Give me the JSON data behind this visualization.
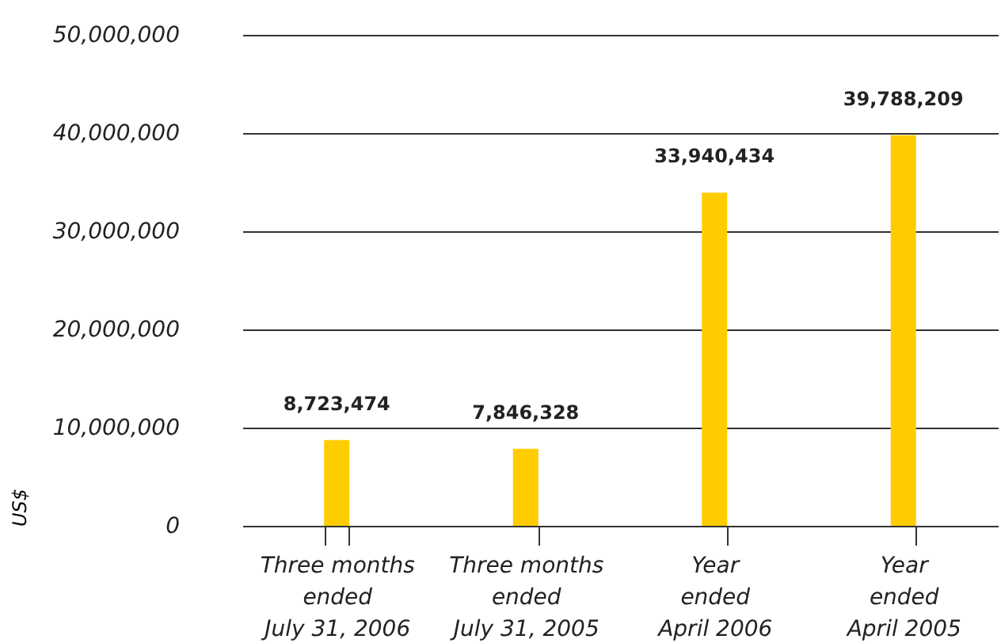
{
  "chart_data": {
    "type": "bar",
    "ylabel": "US$",
    "categories": [
      "Three months\nended\nJuly 31, 2006",
      "Three months\nended\nJuly 31, 2005",
      "Year\nended\nApril 2006",
      "Year\nended\nApril 2005"
    ],
    "values": [
      8723474,
      7846328,
      33940434,
      39788209
    ],
    "color": "#ffcc00",
    "value_labels": [
      "8,723,474",
      "7,846,328",
      "33,940,434",
      "39,788,209"
    ],
    "ylim": [
      0,
      50000000
    ],
    "yticks": [
      0,
      {
        "value": 10000000,
        "label": "10,000,000"
      },
      {
        "value": 20000000,
        "label": "20,000,000"
      },
      {
        "value": 30000000,
        "label": "30,000,000"
      },
      {
        "value": 40000000,
        "label": "40,000,000"
      },
      {
        "value": 50000000,
        "label": "50,000,000"
      }
    ],
    "grid": "y"
  }
}
